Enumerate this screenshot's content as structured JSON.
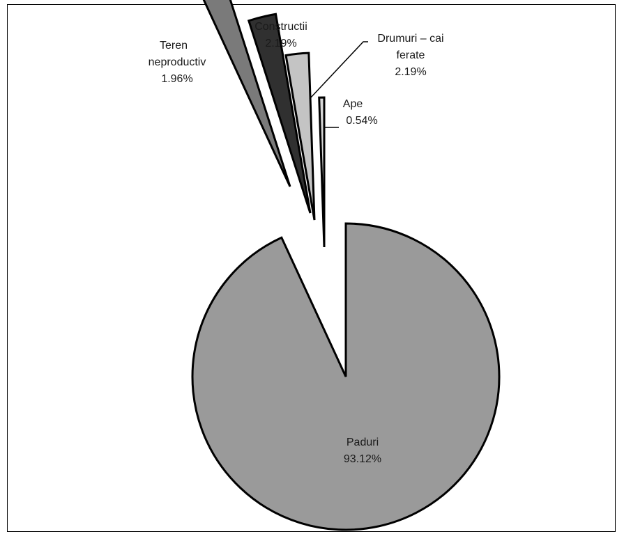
{
  "chart_data": {
    "type": "pie",
    "exploded": true,
    "slices": [
      {
        "label": "Paduri",
        "value": 93.12,
        "value_label": "93.12%",
        "color": "#9a9a9a"
      },
      {
        "label": "Teren neproductiv",
        "value": 1.96,
        "value_label": "1.96%",
        "color": "#7a7a7a"
      },
      {
        "label": "Constructii",
        "value": 2.19,
        "value_label": "2.19%",
        "color": "#303030"
      },
      {
        "label": "Drumuri – cai ferate",
        "value": 2.19,
        "value_label": "2.19%",
        "color": "#c4c4c4"
      },
      {
        "label": "Ape",
        "value": 0.54,
        "value_label": "0.54%",
        "color": "#d8d8d8"
      }
    ]
  }
}
